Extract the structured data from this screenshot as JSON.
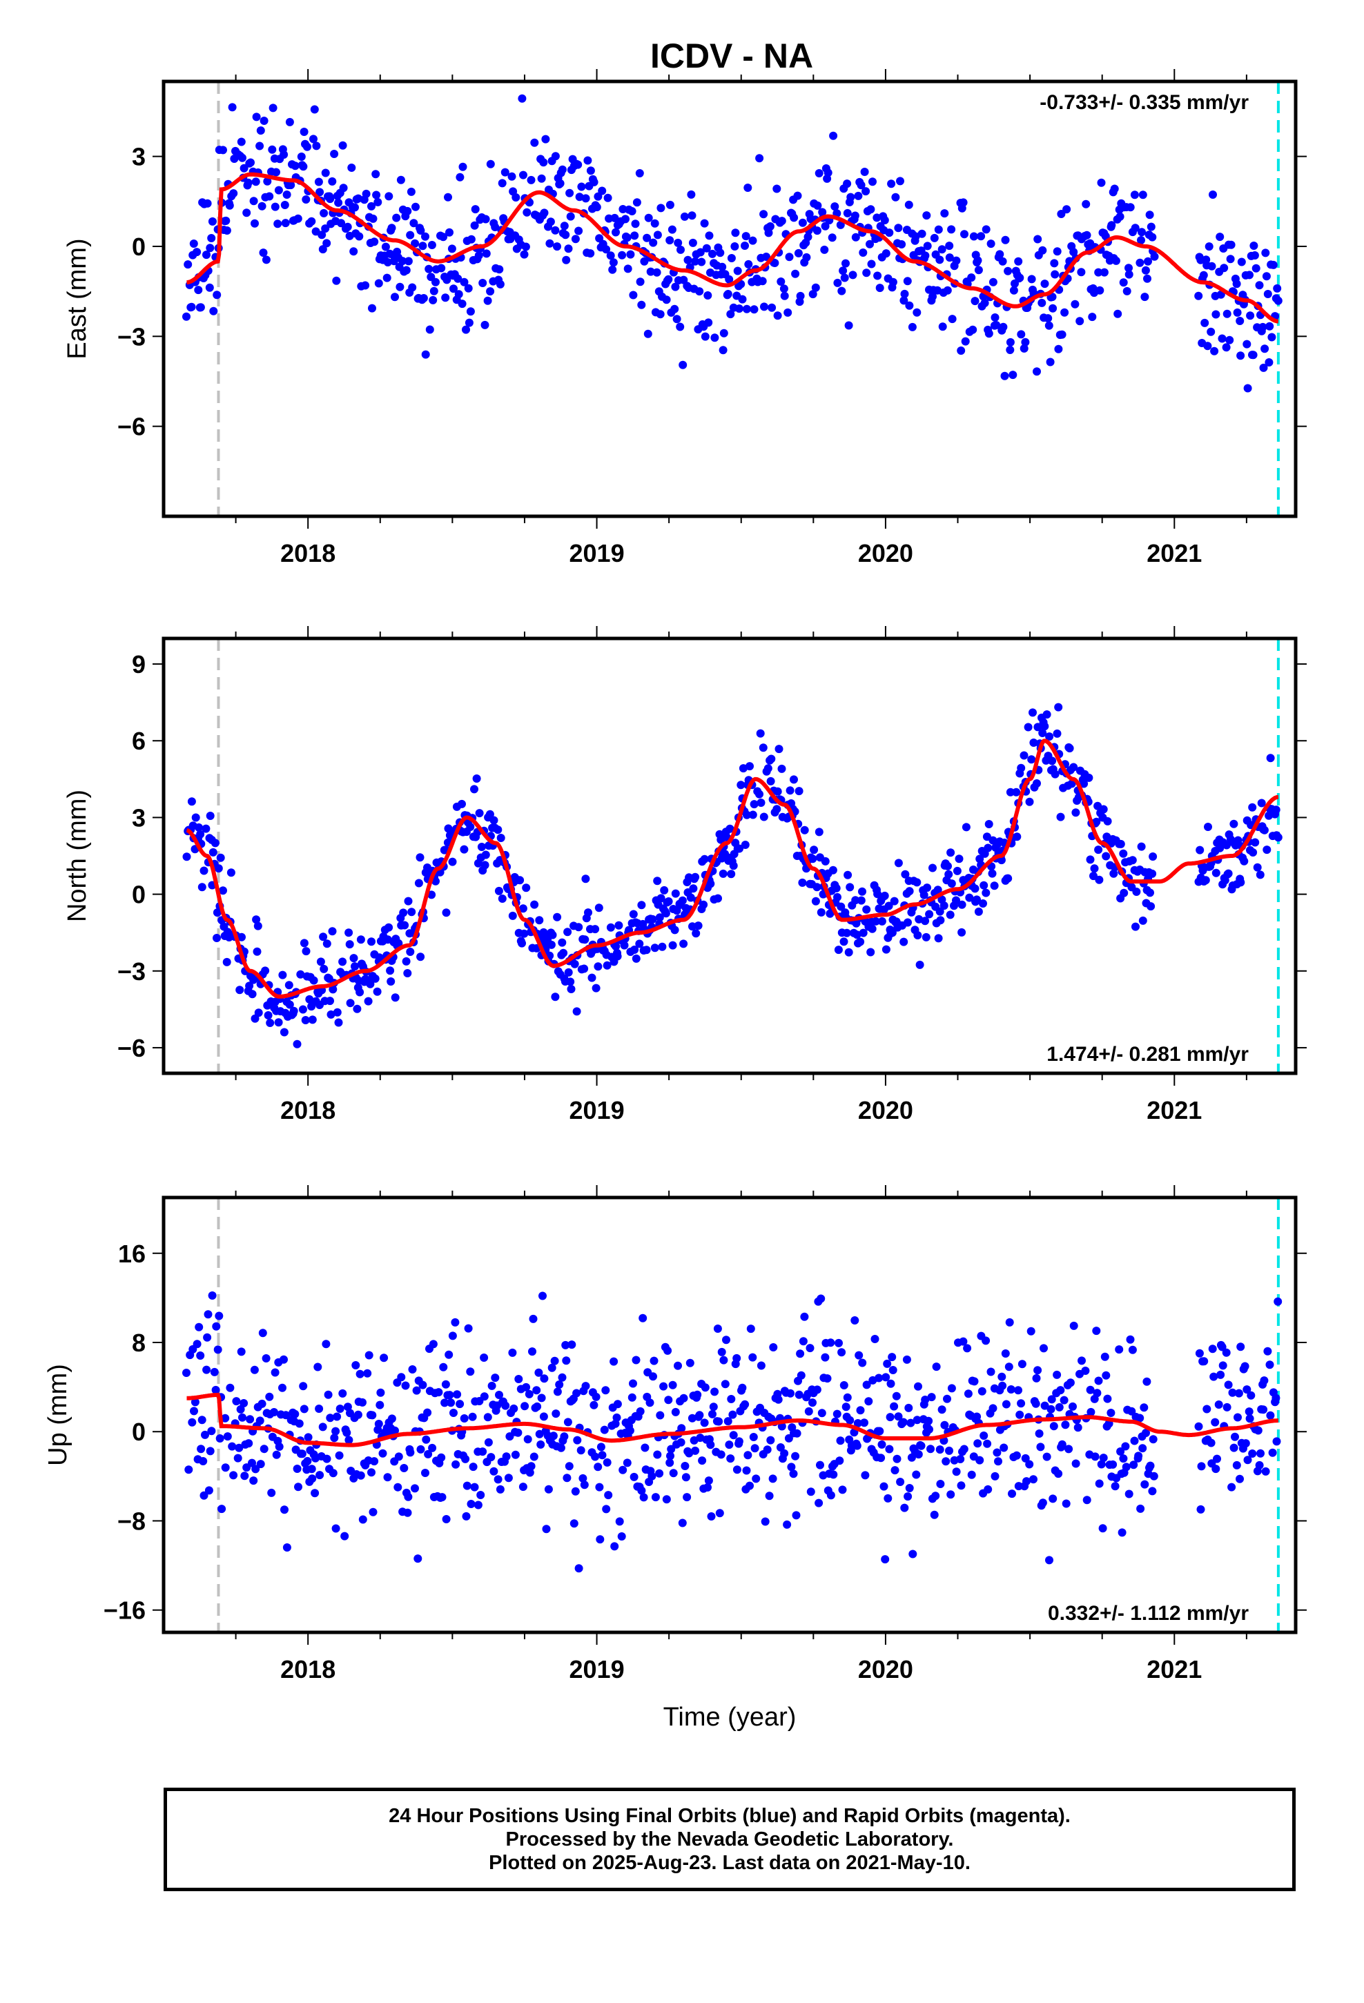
{
  "title": "ICDV - NA",
  "xlabel": "Time (year)",
  "colors": {
    "data": "#0000ff",
    "model": "#ff0000",
    "start_line": "#c0c0c0",
    "end_line": "#00e5e5"
  },
  "caption": [
    "24 Hour Positions Using Final Orbits (blue) and Rapid Orbits (magenta).",
    "Processed by the Nevada Geodetic Laboratory.",
    "Plotted on 2025-Aug-23. Last data on 2021-May-10."
  ],
  "chart_data": [
    {
      "type": "scatter",
      "component": "east",
      "ylabel": "East (mm)",
      "rate": "-0.733+/- 0.335 mm/yr",
      "rate_position": "top-right",
      "xlim": [
        2017.5,
        2021.42
      ],
      "ylim": [
        -9.0,
        5.5
      ],
      "x_ticks": [
        2018,
        2019,
        2020,
        2021
      ],
      "y_ticks": [
        3,
        0,
        -3,
        -6
      ],
      "start_line": 2017.69,
      "end_line": 2021.36,
      "grid": false,
      "model_knots": {
        "x": [
          2017.58,
          2017.69,
          2017.7,
          2017.8,
          2017.95,
          2018.1,
          2018.3,
          2018.45,
          2018.6,
          2018.8,
          2018.92,
          2019.1,
          2019.3,
          2019.45,
          2019.55,
          2019.7,
          2019.8,
          2019.95,
          2020.1,
          2020.3,
          2020.45,
          2020.55,
          2020.7,
          2020.8,
          2020.9,
          2021.1,
          2021.25,
          2021.36
        ],
        "y": [
          -1.2,
          -0.5,
          1.9,
          2.4,
          2.2,
          1.2,
          0.2,
          -0.5,
          0.0,
          1.8,
          1.2,
          0.0,
          -0.8,
          -1.3,
          -0.8,
          0.5,
          1.0,
          0.5,
          -0.5,
          -1.4,
          -2.0,
          -1.6,
          -0.2,
          0.3,
          0.0,
          -1.2,
          -1.8,
          -2.5
        ]
      },
      "scatter": {
        "seed": 11,
        "noise": 1.2,
        "start": 2017.58,
        "end": 2021.36,
        "gaps": [
          [
            2020.93,
            2021.08
          ]
        ]
      }
    },
    {
      "type": "scatter",
      "component": "north",
      "ylabel": "North (mm)",
      "rate": "1.474+/- 0.281 mm/yr",
      "rate_position": "bottom-right",
      "xlim": [
        2017.5,
        2021.42
      ],
      "ylim": [
        -7.0,
        10.0
      ],
      "x_ticks": [
        2018,
        2019,
        2020,
        2021
      ],
      "y_ticks": [
        9,
        6,
        3,
        0,
        -3,
        -6
      ],
      "start_line": 2017.69,
      "end_line": 2021.36,
      "grid": false,
      "model_knots": {
        "x": [
          2017.58,
          2017.65,
          2017.72,
          2017.8,
          2017.9,
          2018.05,
          2018.2,
          2018.35,
          2018.45,
          2018.55,
          2018.65,
          2018.75,
          2018.85,
          2019.0,
          2019.15,
          2019.3,
          2019.45,
          2019.55,
          2019.65,
          2019.75,
          2019.85,
          2020.0,
          2020.1,
          2020.25,
          2020.4,
          2020.5,
          2020.55,
          2020.65,
          2020.75,
          2020.85,
          2020.95,
          2021.05,
          2021.2,
          2021.36
        ],
        "y": [
          2.5,
          1.5,
          -1.0,
          -3.0,
          -4.0,
          -3.6,
          -3.0,
          -2.0,
          1.0,
          3.0,
          2.0,
          -1.0,
          -2.8,
          -2.0,
          -1.5,
          -1.0,
          2.0,
          4.5,
          3.5,
          1.0,
          -1.0,
          -0.8,
          -0.4,
          0.2,
          1.5,
          4.5,
          6.0,
          4.5,
          2.0,
          0.5,
          0.5,
          1.2,
          1.5,
          3.8
        ]
      },
      "scatter": {
        "seed": 23,
        "noise": 0.8,
        "start": 2017.58,
        "end": 2021.36,
        "gaps": [
          [
            2020.93,
            2021.08
          ]
        ]
      }
    },
    {
      "type": "scatter",
      "component": "up",
      "ylabel": "Up (mm)",
      "rate": "0.332+/- 1.112 mm/yr",
      "rate_position": "bottom-right",
      "xlim": [
        2017.5,
        2021.42
      ],
      "ylim": [
        -18.0,
        21.0
      ],
      "x_ticks": [
        2018,
        2019,
        2020,
        2021
      ],
      "y_ticks": [
        16,
        8,
        0,
        -8,
        -16
      ],
      "start_line": 2017.69,
      "end_line": 2021.36,
      "grid": false,
      "model_knots": {
        "x": [
          2017.58,
          2017.69,
          2017.7,
          2017.85,
          2018.0,
          2018.15,
          2018.35,
          2018.55,
          2018.75,
          2018.9,
          2019.05,
          2019.25,
          2019.5,
          2019.7,
          2019.85,
          2020.0,
          2020.15,
          2020.35,
          2020.55,
          2020.7,
          2020.85,
          2020.95,
          2021.05,
          2021.2,
          2021.36
        ],
        "y": [
          3.0,
          3.3,
          0.5,
          0.3,
          -1.0,
          -1.2,
          -0.2,
          0.3,
          0.7,
          0.2,
          -0.8,
          -0.2,
          0.4,
          1.0,
          0.6,
          -0.6,
          -0.6,
          0.6,
          1.1,
          1.3,
          0.9,
          0.0,
          -0.3,
          0.3,
          1.0
        ]
      },
      "scatter": {
        "seed": 37,
        "noise": 4.2,
        "start": 2017.58,
        "end": 2021.36,
        "gaps": [
          [
            2020.93,
            2021.08
          ]
        ]
      }
    }
  ]
}
